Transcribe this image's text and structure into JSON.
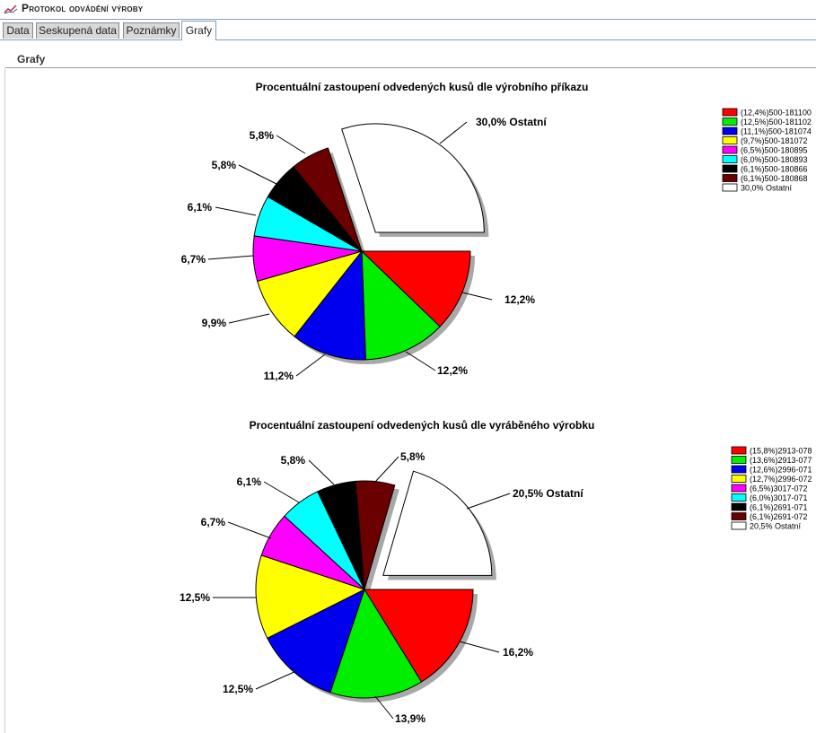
{
  "window": {
    "title": "Protokol odvádění výroby"
  },
  "tabs": [
    {
      "label": "Data",
      "active": false
    },
    {
      "label": "Seskupená data",
      "active": false
    },
    {
      "label": "Poznámky",
      "active": false
    },
    {
      "label": "Grafy",
      "active": true
    }
  ],
  "section": {
    "title": "Grafy"
  },
  "colors": {
    "red": "#ff0000",
    "green": "#00ee00",
    "blue": "#0000ee",
    "yellow": "#ffff00",
    "magenta": "#ff00ff",
    "cyan": "#00ffff",
    "black": "#000000",
    "maroon": "#6b0000",
    "white": "#ffffff"
  },
  "chart_data": [
    {
      "type": "pie",
      "title": "Procentuální zastoupení odvedených kusů dle výrobního příkazu",
      "slices": [
        {
          "legend": "(12,4%)500-181100",
          "label": "12,2%",
          "value": 12.2,
          "color": "#ff0000"
        },
        {
          "legend": "(12,5%)500-181102",
          "label": "12,2%",
          "value": 12.2,
          "color": "#00ee00"
        },
        {
          "legend": "(11,1%)500-181074",
          "label": "11,2%",
          "value": 11.2,
          "color": "#0000ee"
        },
        {
          "legend": "(9,7%)500-181072",
          "label": "9,9%",
          "value": 9.9,
          "color": "#ffff00"
        },
        {
          "legend": "(6,5%)500-180895",
          "label": "6,7%",
          "value": 6.7,
          "color": "#ff00ff"
        },
        {
          "legend": "(6,0%)500-180893",
          "label": "6,1%",
          "value": 6.1,
          "color": "#00ffff"
        },
        {
          "legend": "(6,1%)500-180866",
          "label": "5,8%",
          "value": 5.8,
          "color": "#000000"
        },
        {
          "legend": "(6,1%)500-180868",
          "label": "5,8%",
          "value": 5.8,
          "color": "#6b0000"
        },
        {
          "legend": "30,0% Ostatní",
          "label": "30,0% Ostatní",
          "value": 30.0,
          "color": "#ffffff",
          "exploded": true
        }
      ],
      "legend_position": "top-right"
    },
    {
      "type": "pie",
      "title": "Procentuální zastoupení odvedených kusů dle vyráběného výrobku",
      "slices": [
        {
          "legend": "(15,8%)2913-078",
          "label": "16,2%",
          "value": 16.2,
          "color": "#ff0000"
        },
        {
          "legend": "(13,6%)2913-077",
          "label": "13,9%",
          "value": 13.9,
          "color": "#00ee00"
        },
        {
          "legend": "(12,6%)2996-071",
          "label": "12,5%",
          "value": 12.5,
          "color": "#0000ee"
        },
        {
          "legend": "(12,7%)2996-072",
          "label": "12,5%",
          "value": 12.5,
          "color": "#ffff00"
        },
        {
          "legend": "(6,5%)3017-072",
          "label": "6,7%",
          "value": 6.7,
          "color": "#ff00ff"
        },
        {
          "legend": "(6,0%)3017-071",
          "label": "6,1%",
          "value": 6.1,
          "color": "#00ffff"
        },
        {
          "legend": "(6,1%)2691-071",
          "label": "5,8%",
          "value": 5.8,
          "color": "#000000"
        },
        {
          "legend": "(6,1%)2691-072",
          "label": "5,8%",
          "value": 5.8,
          "color": "#6b0000"
        },
        {
          "legend": "20,5% Ostatní",
          "label": "20,5% Ostatní",
          "value": 20.5,
          "color": "#ffffff",
          "exploded": true
        }
      ],
      "legend_position": "top-right"
    }
  ]
}
